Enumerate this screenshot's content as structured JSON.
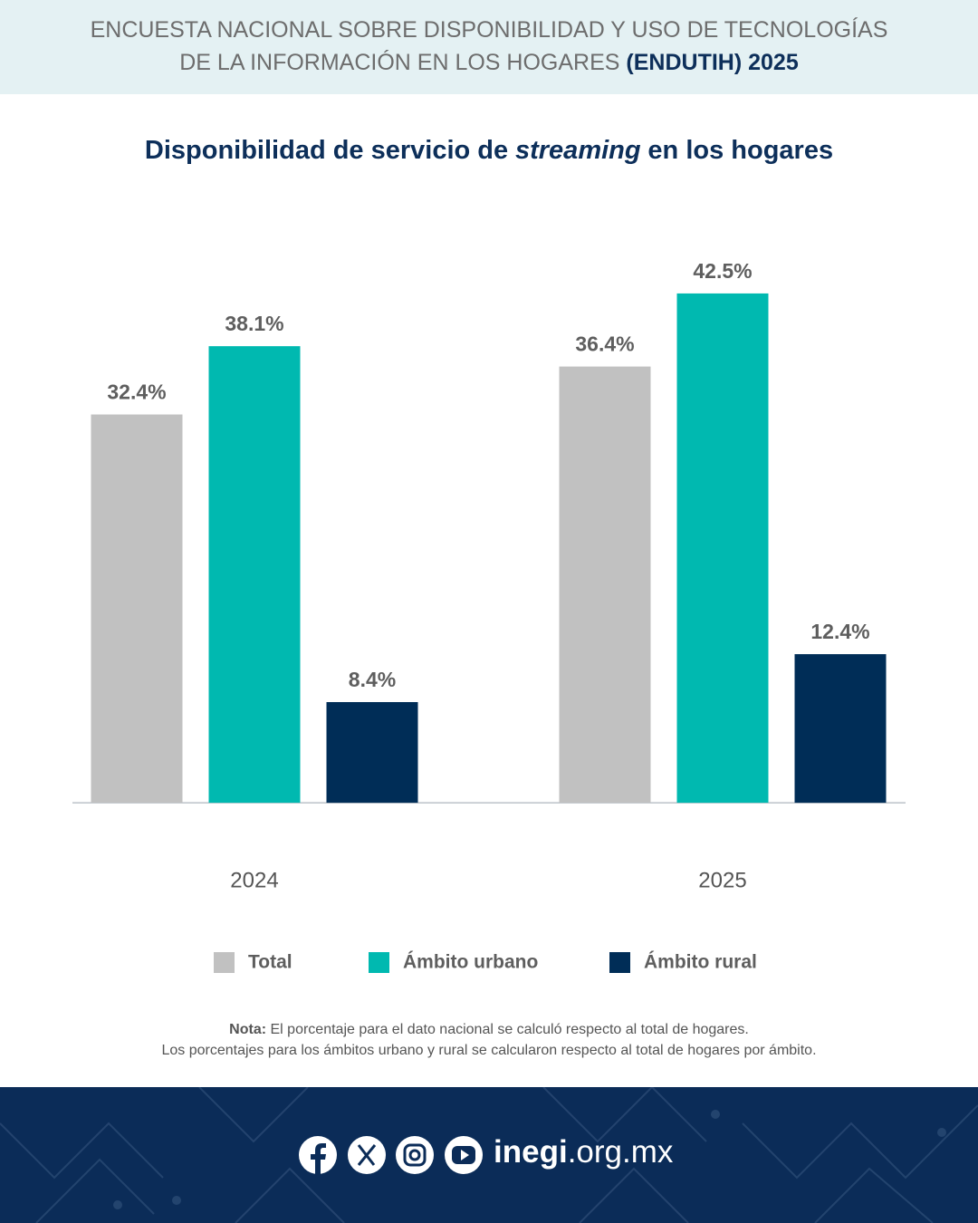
{
  "header": {
    "line1": "ENCUESTA NACIONAL SOBRE DISPONIBILIDAD Y USO DE TECNOLOGÍAS",
    "line2": "DE LA INFORMACIÓN EN LOS HOGARES",
    "line2_bold": "(ENDUTIH) 2025"
  },
  "chart_data": {
    "type": "bar",
    "title_parts": [
      "Disponibilidad de servicio de",
      "streaming",
      "en los hogares"
    ],
    "categories": [
      "2024",
      "2025"
    ],
    "series": [
      {
        "name": "Total",
        "color": "#c1c1c1",
        "values": [
          32.4,
          36.4
        ],
        "value_labels": [
          "32.4%",
          "36.4%"
        ]
      },
      {
        "name": "Ámbito urbano",
        "color": "#00b9b0",
        "values": [
          38.1,
          42.5
        ],
        "value_labels": [
          "38.1%",
          "42.5%"
        ]
      },
      {
        "name": "Ámbito rural",
        "color": "#002d57",
        "values": [
          8.4,
          12.4
        ],
        "value_labels": [
          "8.4%",
          "12.4%"
        ]
      }
    ],
    "ylim": [
      -4.3,
      49.6
    ],
    "grid": false,
    "legend": "bottom"
  },
  "note": {
    "label": "Nota:",
    "line1": "El porcentaje para el dato nacional se calculó respecto al total de hogares.",
    "line2": "Los porcentajes para los ámbitos urbano y rural se calcularon respecto al total de hogares por ámbito."
  },
  "footer": {
    "site_bold": "inegi",
    "site_rest": ".org.mx"
  }
}
